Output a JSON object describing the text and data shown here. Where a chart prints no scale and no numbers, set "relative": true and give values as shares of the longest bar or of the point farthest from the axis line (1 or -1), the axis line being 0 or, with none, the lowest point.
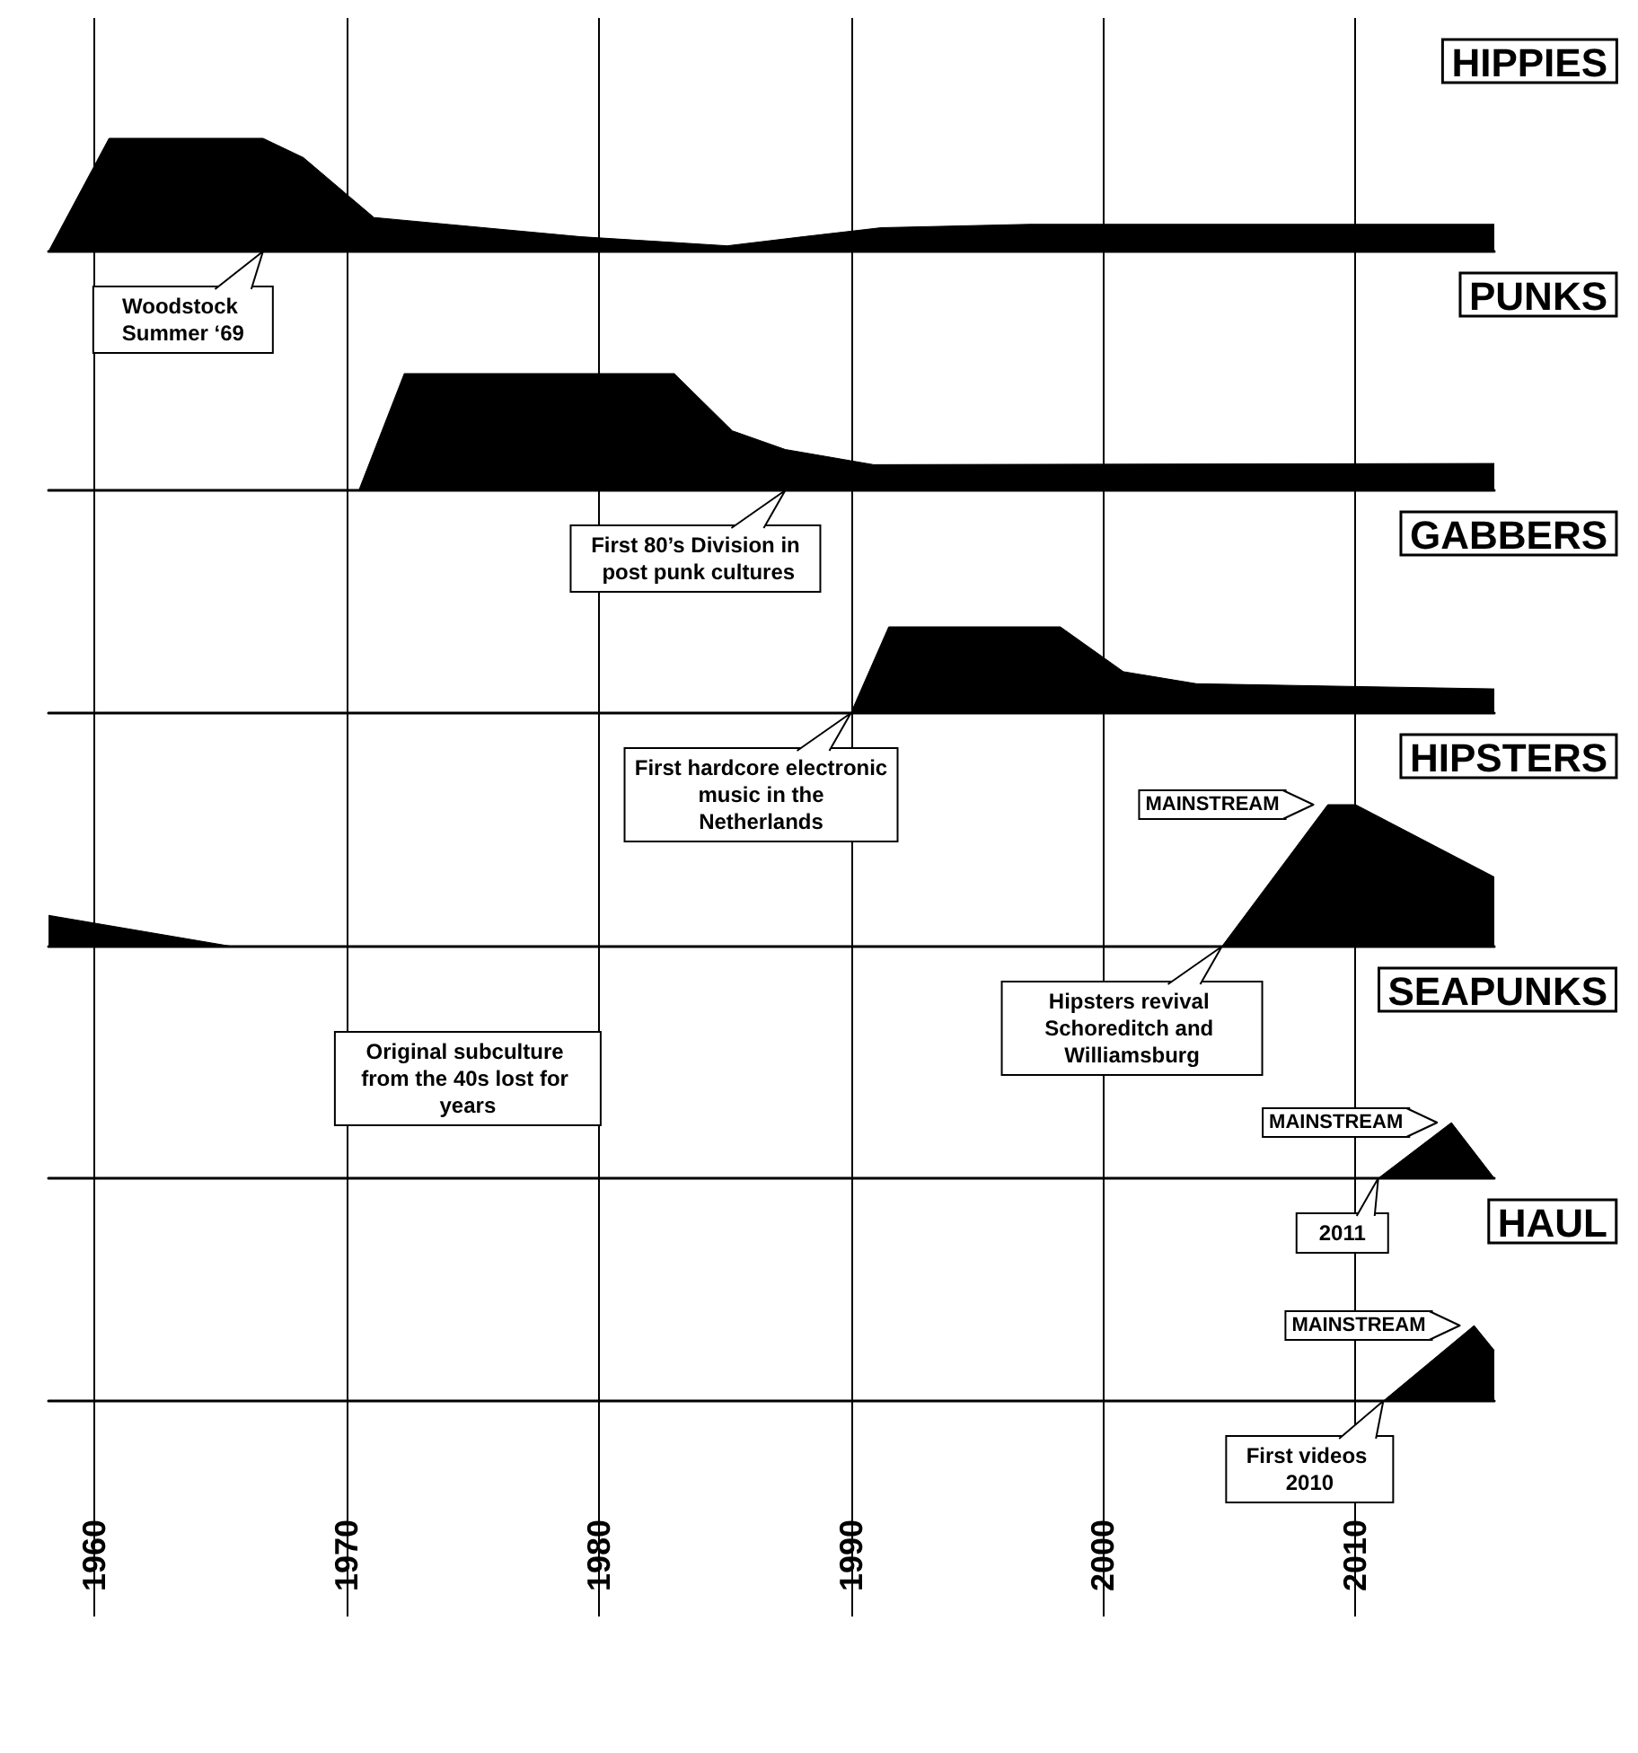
{
  "chart_data": [
    {
      "type": "area",
      "title": "HIPPIES",
      "color": "#000000",
      "relative": true,
      "xlim": [
        1958.2,
        2015.5
      ],
      "xticks": [
        1960,
        1970,
        1980,
        1990,
        2000,
        2010
      ],
      "grid": "x",
      "tick_labels": false,
      "x": [
        1958.2,
        1960.6,
        1966.7,
        1968.3,
        1971.1,
        1979.3,
        1985.1,
        1988.1,
        1991.2,
        1997.1,
        2015.5
      ],
      "values": [
        0,
        1,
        1,
        0.83,
        0.3,
        0.13,
        0.05,
        0.13,
        0.21,
        0.24,
        0.24
      ],
      "annotations": [
        {
          "text": "Woodstock Summer ‘69",
          "x": 1966.7,
          "y": 0
        }
      ]
    },
    {
      "type": "area",
      "title": "PUNKS",
      "color": "#000000",
      "relative": true,
      "xlim": [
        1958.2,
        2015.5
      ],
      "xticks": [
        1960,
        1970,
        1980,
        1990,
        2000,
        2010
      ],
      "grid": "x",
      "tick_labels": false,
      "x": [
        1958.2,
        1970.5,
        1972.3,
        1983.0,
        1985.3,
        1987.4,
        1990.9,
        2015.5
      ],
      "values": [
        0,
        0,
        1,
        1,
        0.51,
        0.35,
        0.22,
        0.23
      ],
      "annotations": [
        {
          "text": "First 80’s Division in post punk cultures",
          "x": 1987.4,
          "y": 0
        }
      ]
    },
    {
      "type": "area",
      "title": "GABBERS",
      "color": "#000000",
      "relative": true,
      "xlim": [
        1958.2,
        2015.5
      ],
      "xticks": [
        1960,
        1970,
        1980,
        1990,
        2000,
        2010
      ],
      "grid": "x",
      "tick_labels": false,
      "x": [
        1958.2,
        1990.0,
        1991.5,
        1998.3,
        2000.8,
        2003.7,
        2015.5
      ],
      "values": [
        0,
        0,
        1,
        1,
        0.48,
        0.34,
        0.28
      ],
      "annotations": [
        {
          "text": "First hardcore electronic music in the Netherlands",
          "x": 1990.0,
          "y": 0
        }
      ]
    },
    {
      "type": "area",
      "title": "HIPSTERS",
      "color": "#000000",
      "relative": true,
      "xlim": [
        1958.2,
        2015.5
      ],
      "xticks": [
        1960,
        1970,
        1980,
        1990,
        2000,
        2010
      ],
      "grid": "x",
      "tick_labels": false,
      "x": [
        1958.2,
        1965.5,
        2004.7,
        2008.9,
        2010.0,
        2015.5
      ],
      "values": [
        0.22,
        0,
        0,
        1,
        1,
        0.49
      ],
      "annotations": [
        "Original subculture from the 40s lost for years",
        {
          "text": "Hipsters revival Schoreditch and Williamsburg",
          "x": 2004.7,
          "y": 0
        },
        {
          "text": "MAINSTREAM",
          "x": 2008.9,
          "y": 1
        }
      ]
    },
    {
      "type": "area",
      "title": "SEAPUNKS",
      "color": "#000000",
      "relative": true,
      "xlim": [
        1958.2,
        2015.5
      ],
      "xticks": [
        1960,
        1970,
        1980,
        1990,
        2000,
        2010
      ],
      "grid": "x",
      "tick_labels": false,
      "x": [
        1958.2,
        2010.9,
        2013.8,
        2015.5
      ],
      "values": [
        0,
        0,
        1,
        0
      ],
      "annotations": [
        {
          "text": "2011",
          "x": 2010.9,
          "y": 0
        },
        {
          "text": "MAINSTREAM",
          "x": 2013.8,
          "y": 1
        }
      ]
    },
    {
      "type": "area",
      "title": "HAUL",
      "color": "#000000",
      "relative": true,
      "xlim": [
        1958.2,
        2015.5
      ],
      "xticks": [
        1960,
        1970,
        1980,
        1990,
        2000,
        2010
      ],
      "grid": "x",
      "tick_labels": "x",
      "x": [
        1958.2,
        2011.1,
        2014.7,
        2015.5
      ],
      "values": [
        0,
        0,
        1,
        0.67
      ],
      "annotations": [
        {
          "text": "First videos 2010",
          "x": 2011.1,
          "y": 0
        },
        {
          "text": "MAINSTREAM",
          "x": 2014.7,
          "y": 1
        }
      ]
    }
  ]
}
